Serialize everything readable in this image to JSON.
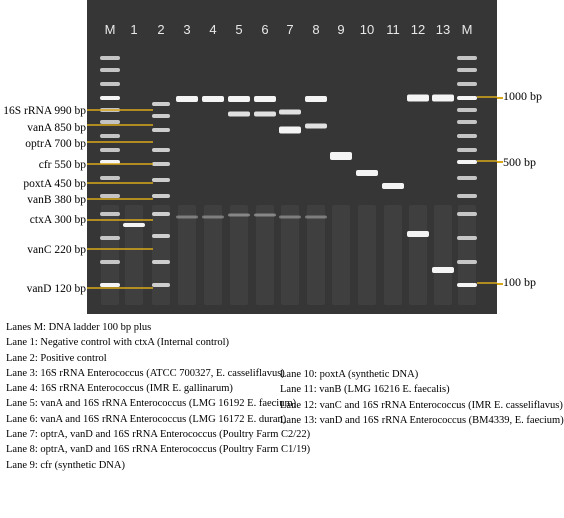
{
  "gel": {
    "lane_labels": [
      "M",
      "1",
      "2",
      "3",
      "4",
      "5",
      "6",
      "7",
      "8",
      "9",
      "10",
      "11",
      "12",
      "13",
      "M"
    ],
    "left_markers": [
      {
        "text": "16S rRNA 990 bp"
      },
      {
        "text": "vanA 850 bp"
      },
      {
        "text": "optrA 700 bp"
      },
      {
        "text": "cfr 550 bp"
      },
      {
        "text": "poxtA 450 bp"
      },
      {
        "text": "vanB 380 bp"
      },
      {
        "text": "ctxA 300 bp"
      },
      {
        "text": "vanC 220 bp"
      },
      {
        "text": "vanD 120 bp"
      }
    ],
    "right_markers": [
      {
        "text": "1000 bp"
      },
      {
        "text": "500 bp"
      },
      {
        "text": "100 bp"
      }
    ],
    "colors": {
      "gel_bg": "#363636",
      "band": "#f4f4f4",
      "marker_line": "#d9a81a",
      "lane_text": "#e8e8e8"
    }
  },
  "legend": {
    "left": [
      "Lanes M: DNA ladder 100 bp plus",
      "Lane 1: Negative control with ctxA (Internal control)",
      "Lane 2: Positive control",
      "Lane 3: 16S rRNA Enterococcus (ATCC 700327, E. casseliflavus)",
      "Lane 4: 16S rRNA Enterococcus (IMR E. gallinarum)",
      "Lane 5: vanA and 16S rRNA Enterococcus (LMG 16192 E. faecium)",
      "Lane 6: vanA and 16S rRNA Enterococcus (LMG 16172 E. duran)",
      "Lane 7: optrA, vanD and 16S rRNA Enterococcus (Poultry Farm C2/22)",
      "Lane 8: optrA, vanD and 16S rRNA Enterococcus (Poultry Farm C1/19)",
      "Lane 9: cfr (synthetic DNA)"
    ],
    "right": [
      "Lane 10: poxtA (synthetic DNA)",
      "Lane 11: vanB (LMG 16216 E. faecalis)",
      "Lane 12: vanC and 16S rRNA Enterococcus (IMR E. casseliflavus)",
      "Lane 13: vanD and 16S rRNA Enterococcus (BM4339, E. faecium)"
    ]
  }
}
